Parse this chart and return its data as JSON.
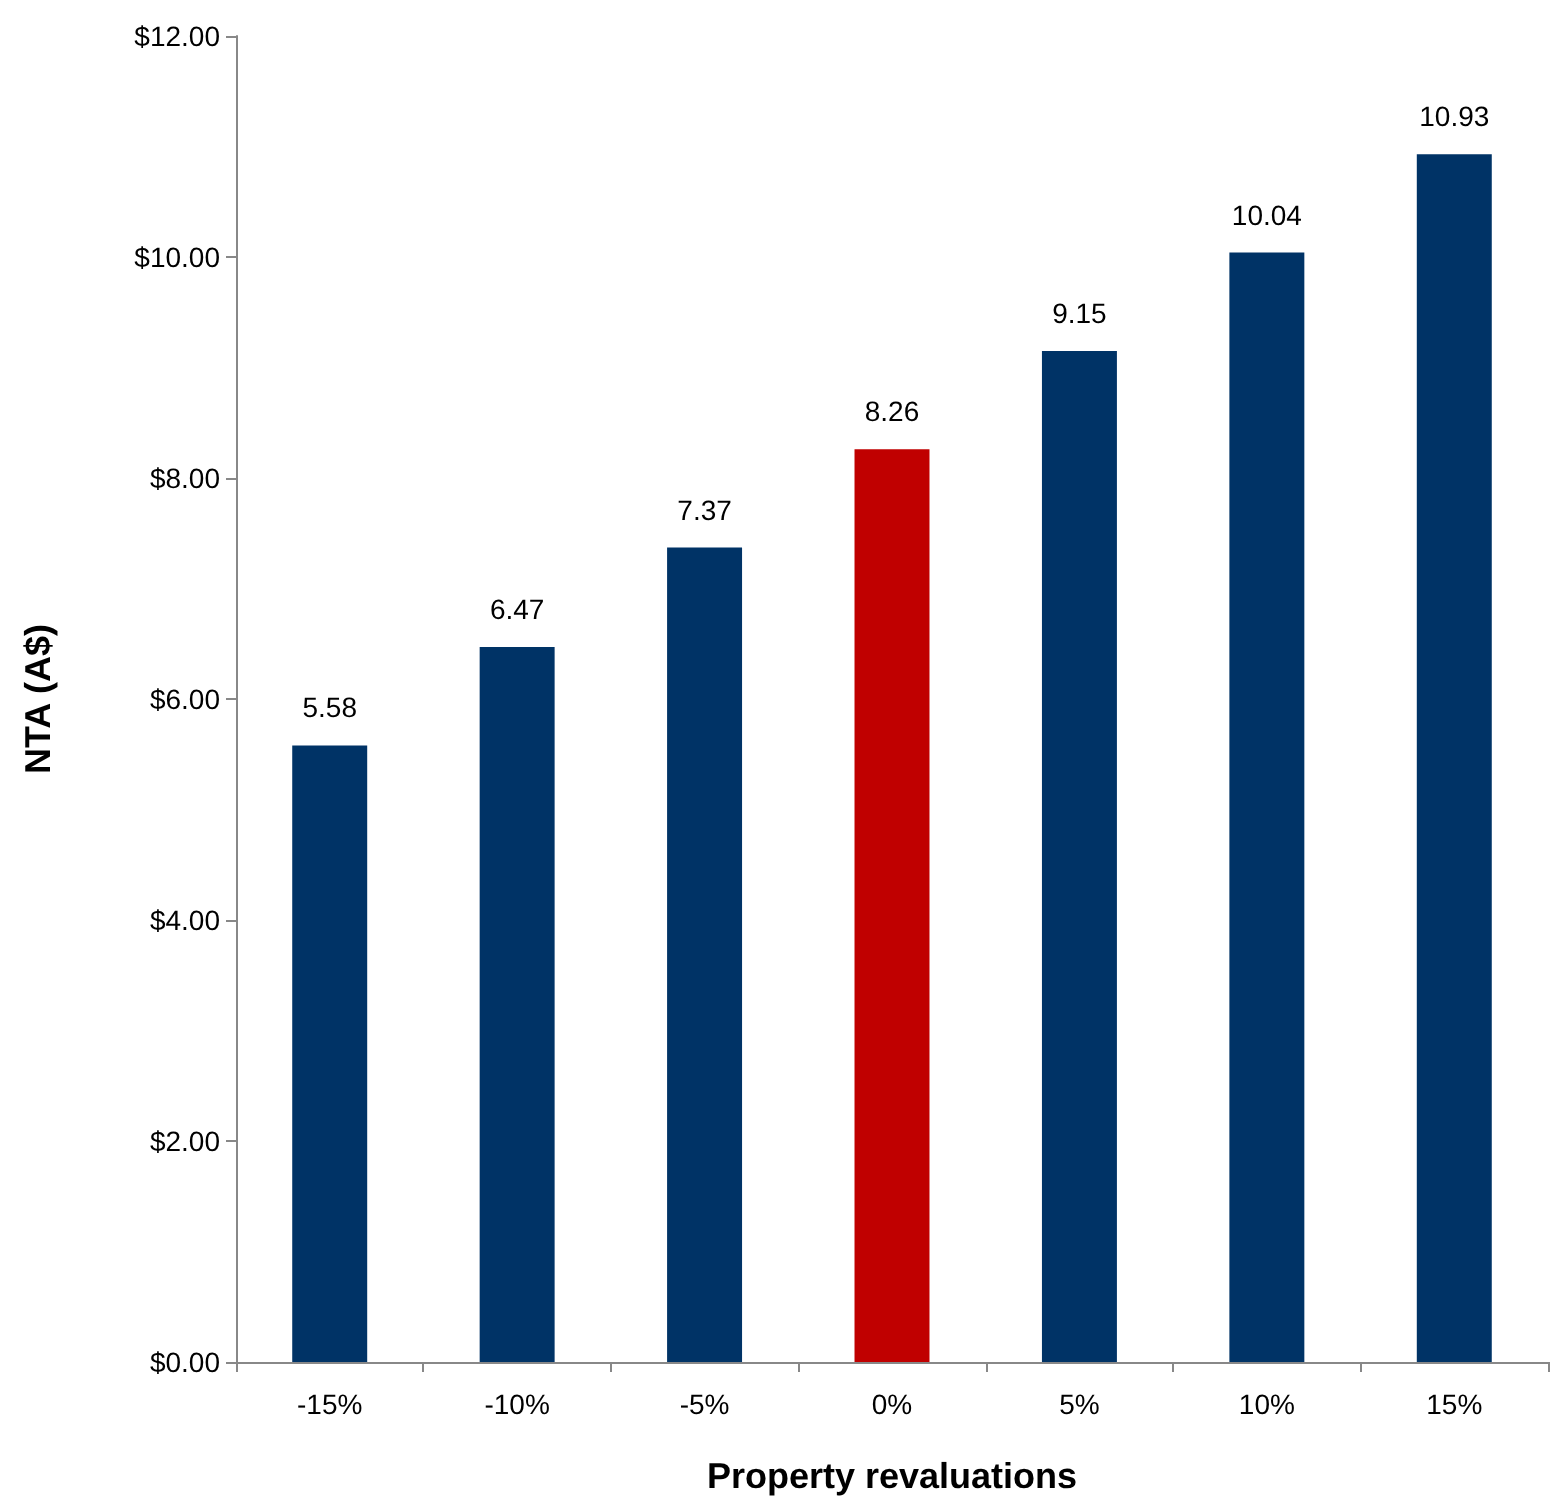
{
  "chart_data": {
    "type": "bar",
    "xlabel": "Property revaluations",
    "ylabel": "NTA (A$)",
    "categories": [
      "-15%",
      "-10%",
      "-5%",
      "0%",
      "5%",
      "10%",
      "15%"
    ],
    "values": [
      5.58,
      6.47,
      7.37,
      8.26,
      9.15,
      10.04,
      10.93
    ],
    "colors": [
      "#003366",
      "#003366",
      "#003366",
      "#c00000",
      "#003366",
      "#003366",
      "#003366"
    ],
    "ylim": [
      0,
      12
    ],
    "yticks": [
      {
        "value": 0,
        "label": "$0.00"
      },
      {
        "value": 2,
        "label": "$2.00"
      },
      {
        "value": 4,
        "label": "$4.00"
      },
      {
        "value": 6,
        "label": "$6.00"
      },
      {
        "value": 8,
        "label": "$8.00"
      },
      {
        "value": 10,
        "label": "$10.00"
      },
      {
        "value": 12,
        "label": "$12.00"
      }
    ],
    "data_labels": true
  }
}
